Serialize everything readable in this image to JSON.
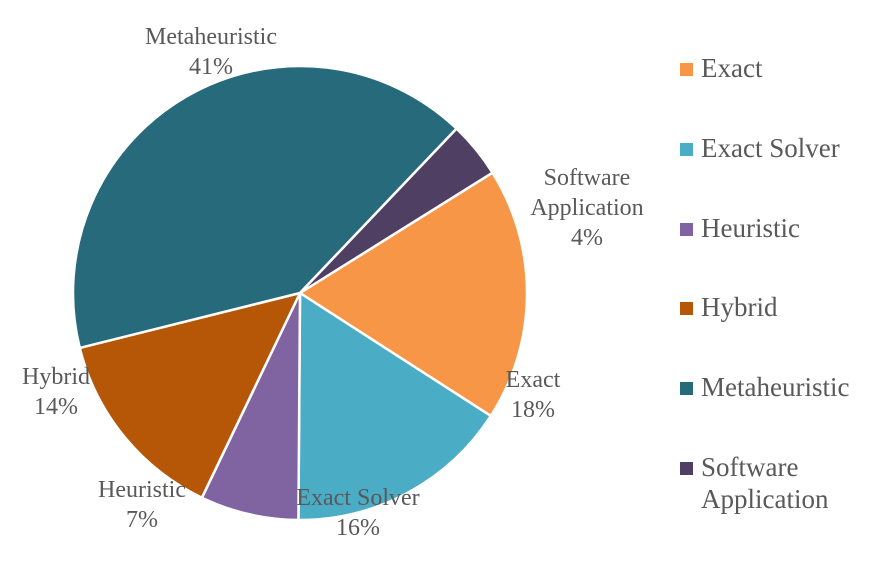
{
  "chart_data": {
    "type": "pie",
    "slices": [
      {
        "name": "Exact",
        "value": 18,
        "label_name": "Exact",
        "label_pct": "18%",
        "color": "#f79646"
      },
      {
        "name": "Exact Solver",
        "value": 16,
        "label_name": "Exact Solver",
        "label_pct": "16%",
        "color": "#4bacc6"
      },
      {
        "name": "Heuristic",
        "value": 7,
        "label_name": "Heuristic",
        "label_pct": "7%",
        "color": "#8064a2"
      },
      {
        "name": "Hybrid",
        "value": 14,
        "label_name": "Hybrid",
        "label_pct": "14%",
        "color": "#b65708"
      },
      {
        "name": "Metaheuristic",
        "value": 41,
        "label_name": "Metaheuristic",
        "label_pct": "41%",
        "color": "#276a7c"
      },
      {
        "name": "Software Application",
        "value": 4,
        "label_name": "Software\nApplication",
        "label_pct": "4%",
        "color": "#4f3f62"
      }
    ],
    "legend_position": "right"
  }
}
